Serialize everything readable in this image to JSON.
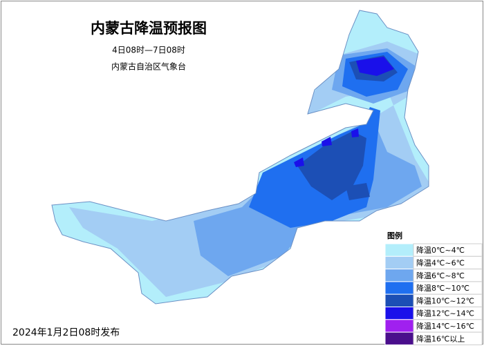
{
  "title": "内蒙古降温预报图",
  "subtitle": "4日08时—7日08时",
  "issuer": "内蒙古自治区气象台",
  "legend": {
    "title": "图例",
    "items": [
      {
        "label": "降温0℃~4℃",
        "color": "#b3eefb"
      },
      {
        "label": "降温4℃~6℃",
        "color": "#a3cdf4"
      },
      {
        "label": "降温6℃~8℃",
        "color": "#6ea7ef"
      },
      {
        "label": "降温8℃~10℃",
        "color": "#1f6ff0"
      },
      {
        "label": "降温10℃~12℃",
        "color": "#1c4fb5"
      },
      {
        "label": "降温12℃~14℃",
        "color": "#1a10ea"
      },
      {
        "label": "降温14℃~16℃",
        "color": "#a020ef"
      },
      {
        "label": "降温16℃以上",
        "color": "#4a0f8c"
      }
    ]
  },
  "footer": "2024年1月2日08时发布"
}
